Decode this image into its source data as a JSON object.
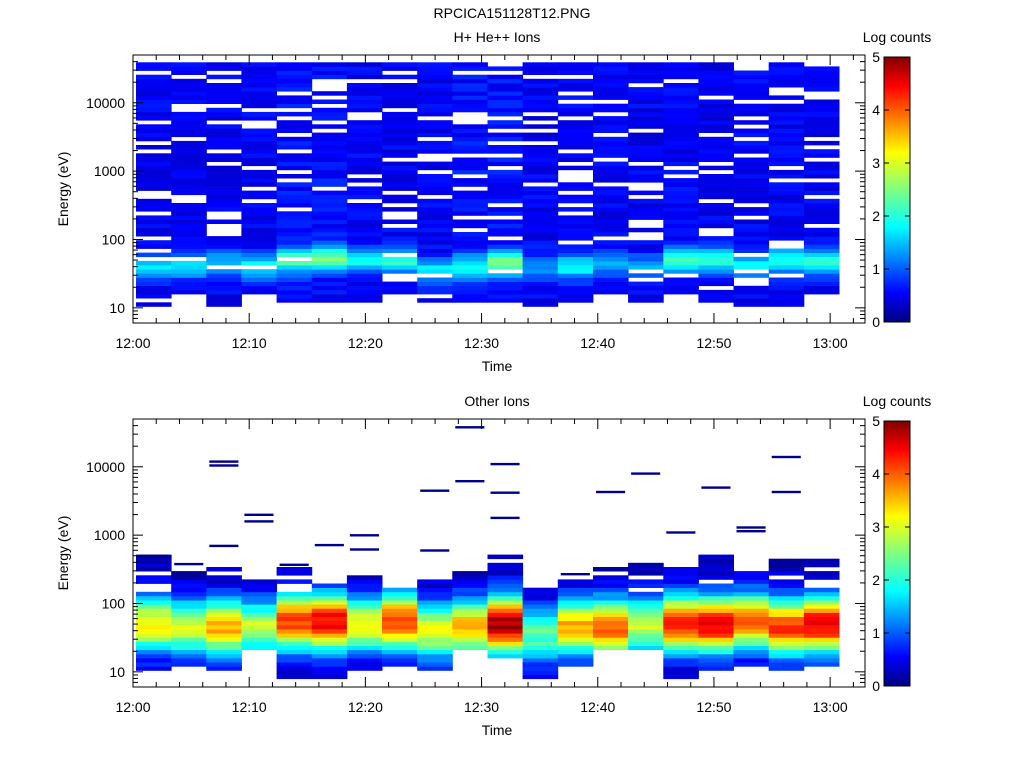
{
  "figure_title": "RPCICA151128T12.PNG",
  "chart_data": [
    {
      "type": "heatmap",
      "title": "H+ He++ Ions",
      "xlabel": "Time",
      "ylabel": "Energy (eV)",
      "yscale": "log",
      "ylim": [
        6,
        50000
      ],
      "xlim": [
        "12:00",
        "13:03"
      ],
      "x_tick_labels": [
        "12:00",
        "12:10",
        "12:20",
        "12:30",
        "12:40",
        "12:50",
        "13:00"
      ],
      "y_tick_labels": [
        "10",
        "100",
        "1000",
        "10000"
      ],
      "colorbar": {
        "label": "Log counts",
        "range": [
          0,
          5
        ],
        "tick_labels": [
          "0",
          "1",
          "2",
          "3",
          "4",
          "5"
        ]
      },
      "time_bins": [
        "12:00",
        "12:03",
        "12:06",
        "12:10",
        "12:13",
        "12:16",
        "12:19",
        "12:23",
        "12:26",
        "12:29",
        "12:32",
        "12:35",
        "12:39",
        "12:42",
        "12:45",
        "12:48",
        "12:51",
        "12:55",
        "12:58",
        "13:01"
      ],
      "profiles": [
        {
          "low_e": 10,
          "peak_e": 40,
          "peak": 1.2,
          "base": 0.4
        },
        {
          "low_e": 15,
          "peak_e": 40,
          "peak": 1.1,
          "base": 0.4
        },
        {
          "low_e": 10,
          "peak_e": 45,
          "peak": 1.0,
          "base": 0.4
        },
        {
          "low_e": 15,
          "peak_e": 40,
          "peak": 1.3,
          "base": 0.4
        },
        {
          "low_e": 12,
          "peak_e": 50,
          "peak": 1.6,
          "base": 0.5
        },
        {
          "low_e": 10,
          "peak_e": 55,
          "peak": 1.8,
          "base": 0.5
        },
        {
          "low_e": 12,
          "peak_e": 50,
          "peak": 1.3,
          "base": 0.4
        },
        {
          "low_e": 15,
          "peak_e": 50,
          "peak": 1.6,
          "base": 0.4
        },
        {
          "low_e": 12,
          "peak_e": 35,
          "peak": 1.3,
          "base": 0.4
        },
        {
          "low_e": 12,
          "peak_e": 40,
          "peak": 1.3,
          "base": 0.5
        },
        {
          "low_e": 12,
          "peak_e": 45,
          "peak": 1.9,
          "base": 0.5
        },
        {
          "low_e": 10,
          "peak_e": 40,
          "peak": 0.8,
          "base": 0.4
        },
        {
          "low_e": 12,
          "peak_e": 40,
          "peak": 1.3,
          "base": 0.4
        },
        {
          "low_e": 15,
          "peak_e": 45,
          "peak": 1.0,
          "base": 0.4
        },
        {
          "low_e": 12,
          "peak_e": 40,
          "peak": 0.9,
          "base": 0.4
        },
        {
          "low_e": 15,
          "peak_e": 50,
          "peak": 1.7,
          "base": 0.4
        },
        {
          "low_e": 12,
          "peak_e": 50,
          "peak": 1.6,
          "base": 0.4
        },
        {
          "low_e": 10,
          "peak_e": 40,
          "peak": 1.3,
          "base": 0.4
        },
        {
          "low_e": 10,
          "peak_e": 50,
          "peak": 1.5,
          "base": 0.4
        },
        {
          "low_e": 12,
          "peak_e": 45,
          "peak": 1.5,
          "base": 0.4
        }
      ],
      "high_energy_extent": 40000
    },
    {
      "type": "heatmap",
      "title": "Other Ions",
      "xlabel": "Time",
      "ylabel": "Energy (eV)",
      "yscale": "log",
      "ylim": [
        6,
        50000
      ],
      "xlim": [
        "12:00",
        "13:03"
      ],
      "x_tick_labels": [
        "12:00",
        "12:10",
        "12:20",
        "12:30",
        "12:40",
        "12:50",
        "13:00"
      ],
      "y_tick_labels": [
        "10",
        "100",
        "1000",
        "10000"
      ],
      "colorbar": {
        "label": "Log counts",
        "range": [
          0,
          5
        ],
        "tick_labels": [
          "0",
          "1",
          "2",
          "3",
          "4",
          "5"
        ]
      },
      "time_bins": [
        "12:00",
        "12:03",
        "12:06",
        "12:10",
        "12:13",
        "12:16",
        "12:19",
        "12:23",
        "12:26",
        "12:29",
        "12:32",
        "12:35",
        "12:39",
        "12:42",
        "12:45",
        "12:48",
        "12:51",
        "12:55",
        "12:58",
        "13:01"
      ],
      "profiles": [
        {
          "low_e": 10,
          "top_e": 500,
          "peak_e": 50,
          "peak": 3.0
        },
        {
          "low_e": 12,
          "top_e": 350,
          "peak_e": 45,
          "peak": 2.7
        },
        {
          "low_e": 10,
          "top_e": 320,
          "peak_e": 45,
          "peak": 3.3
        },
        {
          "low_e": 20,
          "top_e": 260,
          "peak_e": 45,
          "peak": 2.6
        },
        {
          "low_e": 8,
          "top_e": 350,
          "peak_e": 55,
          "peak": 3.9
        },
        {
          "low_e": 8,
          "top_e": 200,
          "peak_e": 55,
          "peak": 4.2
        },
        {
          "low_e": 10,
          "top_e": 270,
          "peak_e": 50,
          "peak": 3.0
        },
        {
          "low_e": 12,
          "top_e": 170,
          "peak_e": 55,
          "peak": 3.9
        },
        {
          "low_e": 10,
          "top_e": 230,
          "peak_e": 40,
          "peak": 2.8
        },
        {
          "low_e": 20,
          "top_e": 280,
          "peak_e": 45,
          "peak": 3.3
        },
        {
          "low_e": 15,
          "top_e": 520,
          "peak_e": 50,
          "peak": 4.6
        },
        {
          "low_e": 8,
          "top_e": 180,
          "peak_e": 35,
          "peak": 2.1
        },
        {
          "low_e": 12,
          "top_e": 260,
          "peak_e": 45,
          "peak": 3.3
        },
        {
          "low_e": 20,
          "top_e": 320,
          "peak_e": 45,
          "peak": 3.7
        },
        {
          "low_e": 20,
          "top_e": 500,
          "peak_e": 50,
          "peak": 2.6
        },
        {
          "low_e": 8,
          "top_e": 350,
          "peak_e": 50,
          "peak": 4.1
        },
        {
          "low_e": 10,
          "top_e": 500,
          "peak_e": 50,
          "peak": 4.3
        },
        {
          "low_e": 12,
          "top_e": 280,
          "peak_e": 55,
          "peak": 3.6
        },
        {
          "low_e": 10,
          "top_e": 520,
          "peak_e": 45,
          "peak": 3.9
        },
        {
          "low_e": 12,
          "top_e": 520,
          "peak_e": 50,
          "peak": 4.3
        }
      ],
      "sparse_high_lines": [
        {
          "bin": 0,
          "e": 500
        },
        {
          "bin": 1,
          "e": 380
        },
        {
          "bin": 2,
          "e": 12000
        },
        {
          "bin": 2,
          "e": 10500
        },
        {
          "bin": 2,
          "e": 700
        },
        {
          "bin": 3,
          "e": 2000
        },
        {
          "bin": 3,
          "e": 1600
        },
        {
          "bin": 4,
          "e": 370
        },
        {
          "bin": 5,
          "e": 720
        },
        {
          "bin": 6,
          "e": 1000
        },
        {
          "bin": 6,
          "e": 620
        },
        {
          "bin": 8,
          "e": 4500
        },
        {
          "bin": 8,
          "e": 600
        },
        {
          "bin": 9,
          "e": 38000
        },
        {
          "bin": 9,
          "e": 6200
        },
        {
          "bin": 10,
          "e": 11000
        },
        {
          "bin": 10,
          "e": 4200
        },
        {
          "bin": 10,
          "e": 1800
        },
        {
          "bin": 12,
          "e": 270
        },
        {
          "bin": 13,
          "e": 4300
        },
        {
          "bin": 14,
          "e": 8000
        },
        {
          "bin": 15,
          "e": 1100
        },
        {
          "bin": 16,
          "e": 5000
        },
        {
          "bin": 17,
          "e": 1300
        },
        {
          "bin": 17,
          "e": 1150
        },
        {
          "bin": 18,
          "e": 14000
        },
        {
          "bin": 18,
          "e": 4300
        }
      ]
    }
  ]
}
